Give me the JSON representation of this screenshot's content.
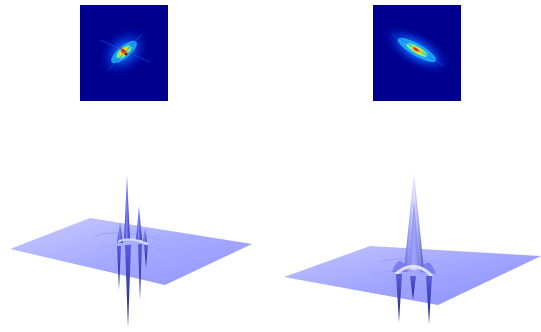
{
  "figure": {
    "panels": [
      {
        "name": "left",
        "heatmap_colors": [
          "#00008f",
          "#0019e6",
          "#1fb5ff",
          "#8dff72",
          "#ffe100",
          "#ff3a00",
          "#9a0000"
        ],
        "surface_color": "#8f93ff"
      },
      {
        "name": "right",
        "heatmap_colors": [
          "#00008f",
          "#0019e6",
          "#1fb5ff",
          "#8dff72",
          "#ffe100",
          "#ff3a00",
          "#9a0000"
        ],
        "surface_color": "#8f93ff"
      }
    ]
  }
}
